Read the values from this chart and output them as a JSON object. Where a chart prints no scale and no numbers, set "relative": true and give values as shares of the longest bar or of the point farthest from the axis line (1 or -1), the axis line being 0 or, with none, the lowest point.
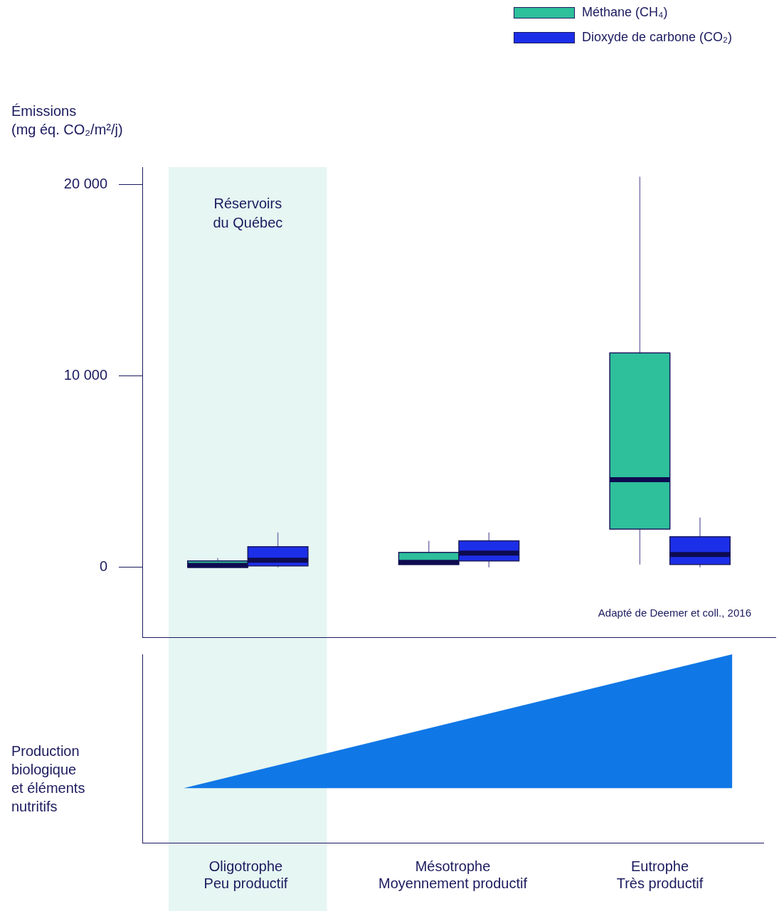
{
  "chart_data": [
    {
      "type": "box",
      "ylabel": "Émissions\n(mg éq. CO₂/m²/j)",
      "categories": [
        "Oligotrophe\nPeu productif",
        "Mésotrophe\nMoyennement productif",
        "Eutrophe\nTrès productif"
      ],
      "series": [
        {
          "name": "Méthane (CH₄)",
          "color": "#2ebf9b",
          "boxes": [
            {
              "low": 0,
              "q1": 0,
              "median": 100,
              "q3": 330,
              "high": 480
            },
            {
              "low": 150,
              "q1": 150,
              "median": 260,
              "q3": 780,
              "high": 1380
            },
            {
              "low": 150,
              "q1": 2000,
              "median": 4580,
              "q3": 11200,
              "high": 20400
            }
          ]
        },
        {
          "name": "Dioxyde de carbone (CO₂)",
          "color": "#1c2fe8",
          "boxes": [
            {
              "low": 0,
              "q1": 75,
              "median": 370,
              "q3": 1080,
              "high": 1820
            },
            {
              "low": 0,
              "q1": 330,
              "median": 740,
              "q3": 1380,
              "high": 1820
            },
            {
              "low": 0,
              "q1": 150,
              "median": 670,
              "q3": 1600,
              "high": 2600
            }
          ]
        }
      ],
      "ylim": [
        -3650,
        20900
      ],
      "yticks": [
        {
          "value": 0,
          "label": "0"
        },
        {
          "value": 10000,
          "label": "10 000"
        },
        {
          "value": 20000,
          "label": "20 000"
        }
      ],
      "tick_labels": "y",
      "legend": "top right",
      "bands": [
        {
          "axis": "x",
          "from": "Oligotrophe\nPeu productif",
          "to": "Oligotrophe\nPeu productif",
          "label": "Réservoirs\ndu Québec",
          "color": "#e6f6f2"
        }
      ],
      "annotations": [
        "Adapté de Deemer et coll., 2016"
      ]
    },
    {
      "type": "area",
      "ylabel": "Production\nbiologique\net éléments\nnutritifs",
      "relative": true,
      "categories": [
        null,
        null,
        null,
        null,
        null,
        null,
        null,
        null,
        null,
        null,
        "Oligotrophe\nPeu productif",
        null,
        null,
        null,
        null,
        null,
        null,
        null,
        null,
        null,
        null,
        null,
        null,
        null,
        null,
        null,
        null,
        null,
        null,
        null,
        "Mésotrophe\nMoyennement productif",
        null,
        null,
        null,
        null,
        null,
        null,
        null,
        null,
        null,
        null,
        null,
        null,
        null,
        null,
        null,
        null,
        null,
        null,
        null,
        "Eutrophe\nTrès productif",
        null,
        null,
        null,
        null,
        null,
        null,
        null,
        null,
        null,
        null
      ],
      "series": [
        {
          "color": "#1077e6",
          "values": [
            null,
            null,
            null,
            null,
            0.29,
            null,
            null,
            null,
            null,
            null,
            null,
            null,
            null,
            null,
            null,
            null,
            null,
            null,
            null,
            null,
            null,
            null,
            null,
            null,
            null,
            null,
            null,
            null,
            null,
            null,
            null,
            null,
            null,
            null,
            null,
            null,
            null,
            null,
            null,
            null,
            null,
            null,
            null,
            null,
            null,
            null,
            null,
            null,
            null,
            null,
            null,
            null,
            null,
            null,
            null,
            null,
            null,
            1,
            null,
            null,
            null
          ]
        }
      ],
      "tick_labels": "x"
    }
  ]
}
